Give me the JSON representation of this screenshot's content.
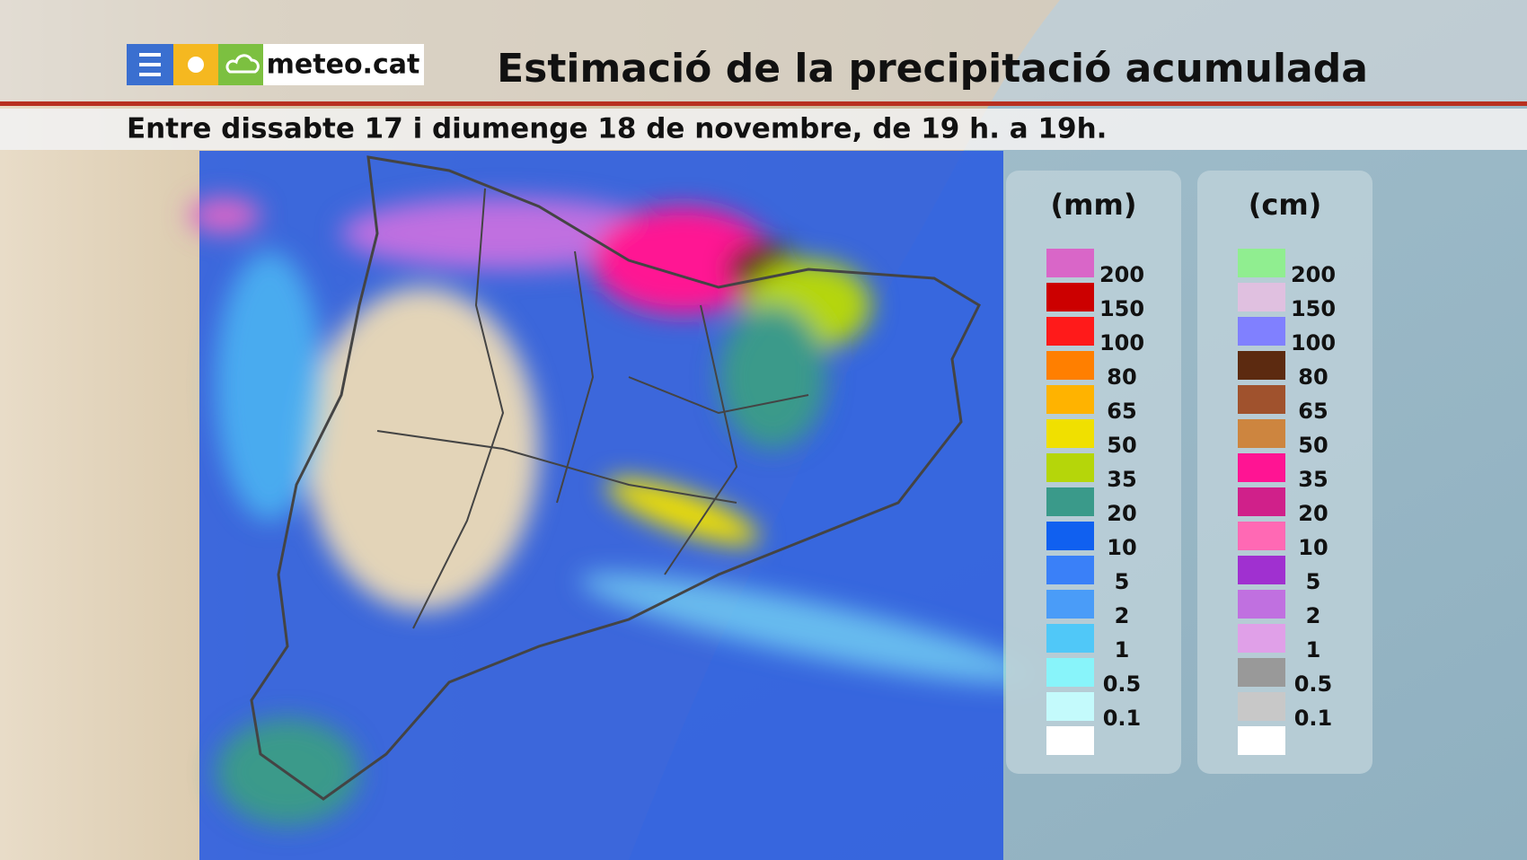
{
  "header": {
    "logo": "meteo.cat",
    "title": "Estimació de la precipitació acumulada",
    "subtitle": "Entre dissabte 17 i diumenge 18 de novembre, de 19 h. a 19h."
  },
  "legends": [
    {
      "unit": "(mm)",
      "labels": [
        "200",
        "150",
        "100",
        "80",
        "65",
        "50",
        "35",
        "20",
        "10",
        "5",
        "2",
        "1",
        "0.5",
        "0.1"
      ],
      "colors": [
        "#d966c8",
        "#cc0000",
        "#ff1a1a",
        "#ff7f00",
        "#ffb300",
        "#f0e000",
        "#b5d60a",
        "#3a9a8a",
        "#1060f0",
        "#3a80f8",
        "#4a9cf8",
        "#50c8f8",
        "#88f4fa",
        "#c4fafc",
        "#ffffff"
      ]
    },
    {
      "unit": "(cm)",
      "labels": [
        "200",
        "150",
        "100",
        "80",
        "65",
        "50",
        "35",
        "20",
        "10",
        "5",
        "2",
        "1",
        "0.5",
        "0.1"
      ],
      "colors": [
        "#90ee90",
        "#e0c0e0",
        "#8080ff",
        "#5c2a10",
        "#a0522d",
        "#cd853f",
        "#ff1493",
        "#d0208a",
        "#ff69b4",
        "#a030d0",
        "#c070e0",
        "#e0a0e8",
        "#999999",
        "#c8c8c8",
        "#ffffff"
      ]
    }
  ]
}
